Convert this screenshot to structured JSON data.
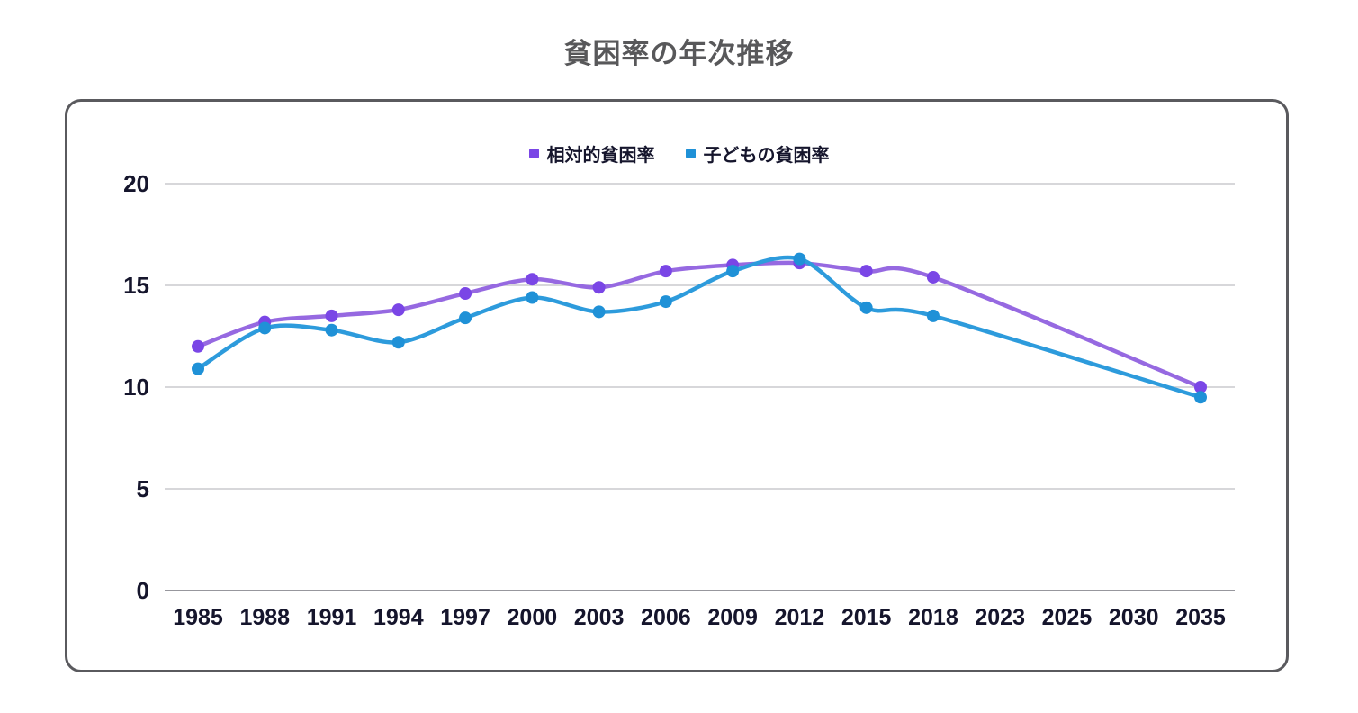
{
  "page": {
    "title": "貧困率の年次推移"
  },
  "legend": {
    "items": [
      {
        "label": "相対的貧困率",
        "color": "#7a46e6"
      },
      {
        "label": "子どもの貧困率",
        "color": "#1f91d7"
      }
    ]
  },
  "chart_data": {
    "type": "line",
    "title": "貧困率の年次推移",
    "categories": [
      "1985",
      "1988",
      "1991",
      "1994",
      "1997",
      "2000",
      "2003",
      "2006",
      "2009",
      "2012",
      "2015",
      "2018",
      "2023",
      "2025",
      "2030",
      "2035"
    ],
    "series": [
      {
        "name": "相対的貧困率",
        "color": "#9669e1",
        "point_color": "#7a46e6",
        "values": [
          12.0,
          13.2,
          13.5,
          13.8,
          14.6,
          15.3,
          14.9,
          15.7,
          16.0,
          16.1,
          15.7,
          15.4,
          null,
          null,
          null,
          10.0
        ]
      },
      {
        "name": "子どもの貧困率",
        "color": "#2d9bdc",
        "point_color": "#1f91d7",
        "values": [
          10.9,
          12.9,
          12.8,
          12.2,
          13.4,
          14.4,
          13.7,
          14.2,
          15.7,
          16.3,
          13.9,
          13.5,
          null,
          null,
          null,
          9.5
        ]
      }
    ],
    "y_ticks": [
      0,
      5,
      10,
      15,
      20
    ],
    "ylim": [
      0,
      20
    ],
    "xlabel": "",
    "ylabel": "",
    "grid": true,
    "legend_position": "top",
    "gap_behavior": "span-missing-years"
  },
  "colors": {
    "title_text": "#58585a",
    "axis_text": "#15152c",
    "card_border": "#5a5a5e",
    "gridline": "#cacace",
    "zero_line": "#97979d",
    "background": "#ffffff"
  }
}
